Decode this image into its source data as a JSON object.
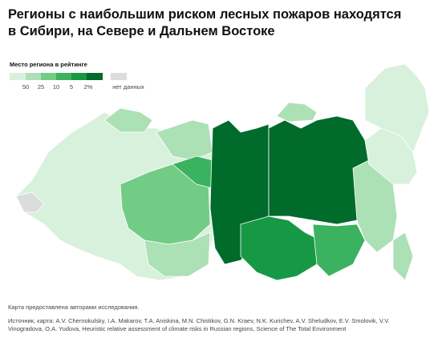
{
  "title_lines": [
    "Регионы с наибольшим риском лесных пожаров находятся",
    "в Сибири, на Севере и Дальнем Востоке"
  ],
  "legend": {
    "title": "Место региона в рейтинге",
    "labels": [
      "50",
      "25",
      "10",
      "5",
      "2%"
    ],
    "no_data": "нет данных"
  },
  "source_note": "Карта предоставлена авторами исследования.",
  "citation": "Источник, карта: A.V. Chernokulsky, I.A. Makarov, T.A. Aniskina, M.N. Chistikov, G.N. Kraev, N.K. Kurichev, A.V. Sheludkov, E.V. Smolovik, V.V. Vinogradova, O.A. Yudova, Heuristic relative assessment of climate risks in Russian regions, Science of The Total Environment"
}
